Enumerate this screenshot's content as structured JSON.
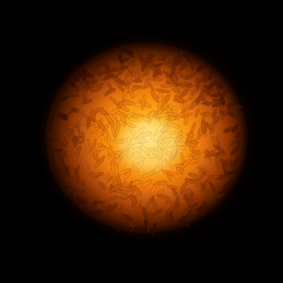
{
  "scene": {
    "subject": "glowing-grain-pile",
    "colors": {
      "background": "#000000",
      "core": "#FFE27A",
      "inner": "#FFB51E",
      "mid": "#F07A0A",
      "outer": "#9A3A06",
      "edge": "#2A0A02"
    }
  }
}
